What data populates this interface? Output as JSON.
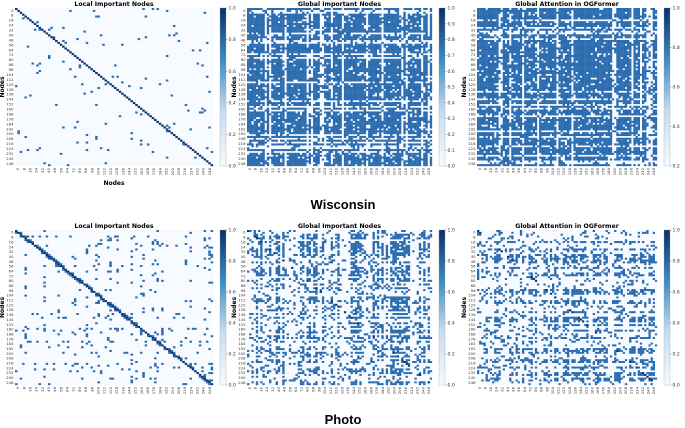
{
  "colors": {
    "low": "#f7fbff",
    "mid": "#6baed6",
    "high": "#08306b"
  },
  "chart_data": [
    {
      "type": "heatmap",
      "dataset": "Wisconsin",
      "title": "Local Important Nodes",
      "xlabel": "Nodes",
      "ylabel": "Nodes",
      "matrix_size": 251,
      "pattern": "sparse_diagonal",
      "density": 0.02,
      "ticks": [
        "0",
        "8",
        "16",
        "24",
        "32",
        "40",
        "48",
        "56",
        "64",
        "72",
        "80",
        "88",
        "96",
        "104",
        "112",
        "120",
        "128",
        "136",
        "144",
        "152",
        "160",
        "168",
        "176",
        "184",
        "192",
        "200",
        "208",
        "216",
        "224",
        "232",
        "240",
        "248"
      ],
      "colorbar": {
        "min": 0.0,
        "max": 1.0,
        "ticks": [
          "0.0",
          "0.2",
          "0.4",
          "0.6",
          "0.8",
          "1.0"
        ]
      }
    },
    {
      "type": "heatmap",
      "dataset": "Wisconsin",
      "title": "Global Important Nodes",
      "xlabel": "",
      "ylabel": "Nodes",
      "matrix_size": 251,
      "pattern": "dense_block",
      "density": 0.62,
      "ticks": [
        "0",
        "8",
        "16",
        "24",
        "32",
        "40",
        "48",
        "56",
        "64",
        "72",
        "80",
        "88",
        "96",
        "104",
        "112",
        "120",
        "128",
        "136",
        "144",
        "152",
        "160",
        "168",
        "176",
        "184",
        "192",
        "200",
        "208",
        "216",
        "224",
        "232",
        "240",
        "248"
      ],
      "colorbar": {
        "min": 0.0,
        "max": 1.0,
        "ticks": [
          "0.0",
          "0.1",
          "0.2",
          "0.3",
          "0.4",
          "0.5",
          "0.6",
          "0.7",
          "0.8",
          "0.9",
          "1.0"
        ]
      }
    },
    {
      "type": "heatmap",
      "dataset": "Wisconsin",
      "title": "Global Attention in OGFormer",
      "xlabel": "",
      "ylabel": "Nodes",
      "matrix_size": 251,
      "pattern": "dense_block",
      "density": 0.68,
      "ticks": [
        "0",
        "8",
        "16",
        "24",
        "32",
        "40",
        "48",
        "56",
        "64",
        "72",
        "80",
        "88",
        "96",
        "104",
        "112",
        "120",
        "128",
        "136",
        "144",
        "152",
        "160",
        "168",
        "176",
        "184",
        "192",
        "200",
        "208",
        "216",
        "224",
        "232",
        "240",
        "248"
      ],
      "colorbar": {
        "min": 0.2,
        "max": 1.0,
        "ticks": [
          "0.2",
          "0.4",
          "0.6",
          "0.8",
          "1.0"
        ]
      }
    },
    {
      "type": "heatmap",
      "dataset": "Photo",
      "title": "Local Important Nodes",
      "xlabel": "",
      "ylabel": "Nodes",
      "matrix_size": 251,
      "pattern": "banded_diagonal",
      "density": 0.12,
      "ticks": [
        "0",
        "8",
        "16",
        "24",
        "32",
        "40",
        "48",
        "56",
        "64",
        "72",
        "80",
        "88",
        "96",
        "104",
        "112",
        "120",
        "128",
        "136",
        "144",
        "152",
        "160",
        "168",
        "176",
        "184",
        "192",
        "200",
        "208",
        "216",
        "224",
        "232",
        "240",
        "248"
      ],
      "colorbar": {
        "min": 0.0,
        "max": 1.0,
        "ticks": [
          "0.0",
          "0.2",
          "0.4",
          "0.6",
          "0.8",
          "1.0"
        ]
      }
    },
    {
      "type": "heatmap",
      "dataset": "Photo",
      "title": "Global Important Nodes",
      "xlabel": "",
      "ylabel": "Nodes",
      "matrix_size": 251,
      "pattern": "banded_block",
      "density": 0.34,
      "ticks": [
        "0",
        "8",
        "16",
        "24",
        "32",
        "40",
        "48",
        "56",
        "64",
        "72",
        "80",
        "88",
        "96",
        "104",
        "112",
        "120",
        "128",
        "136",
        "144",
        "152",
        "160",
        "168",
        "176",
        "184",
        "192",
        "200",
        "208",
        "216",
        "224",
        "232",
        "240",
        "248"
      ],
      "colorbar": {
        "min": 0.0,
        "max": 1.0,
        "ticks": [
          "0.0",
          "0.2",
          "0.4",
          "0.6",
          "0.8",
          "1.0"
        ]
      }
    },
    {
      "type": "heatmap",
      "dataset": "Photo",
      "title": "Global Attention in OGFormer",
      "xlabel": "",
      "ylabel": "Nodes",
      "matrix_size": 251,
      "pattern": "banded_block",
      "density": 0.3,
      "ticks": [
        "0",
        "8",
        "16",
        "24",
        "32",
        "40",
        "48",
        "56",
        "64",
        "72",
        "80",
        "88",
        "96",
        "104",
        "112",
        "120",
        "128",
        "136",
        "144",
        "152",
        "160",
        "168",
        "176",
        "184",
        "192",
        "200",
        "208",
        "216",
        "224",
        "232",
        "240",
        "248"
      ],
      "colorbar": {
        "min": 0.0,
        "max": 1.0,
        "ticks": [
          "0.0",
          "0.2",
          "0.4",
          "0.6",
          "0.8",
          "1.0"
        ]
      }
    }
  ],
  "datasets": [
    "Wisconsin",
    "Photo"
  ]
}
